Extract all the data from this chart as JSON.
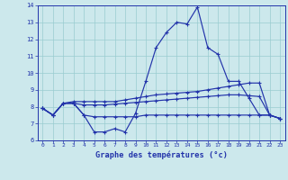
{
  "title": "Graphe des températures (°c)",
  "bg_color": "#cce8ec",
  "line_color": "#2233aa",
  "grid_color": "#99ccd0",
  "xlim_min": -0.5,
  "xlim_max": 23.5,
  "ylim_min": 6,
  "ylim_max": 14,
  "yticks": [
    6,
    7,
    8,
    9,
    10,
    11,
    12,
    13,
    14
  ],
  "xticks": [
    0,
    1,
    2,
    3,
    4,
    5,
    6,
    7,
    8,
    9,
    10,
    11,
    12,
    13,
    14,
    15,
    16,
    17,
    18,
    19,
    20,
    21,
    22,
    23
  ],
  "hours": [
    0,
    1,
    2,
    3,
    4,
    5,
    6,
    7,
    8,
    9,
    10,
    11,
    12,
    13,
    14,
    15,
    16,
    17,
    18,
    19,
    20,
    21,
    22,
    23
  ],
  "line_main": [
    7.9,
    7.5,
    8.2,
    8.2,
    7.5,
    6.5,
    6.5,
    6.7,
    6.5,
    7.6,
    9.5,
    11.5,
    12.4,
    13.0,
    12.9,
    13.9,
    11.5,
    11.1,
    9.5,
    9.5,
    8.5,
    7.5,
    7.5,
    7.3
  ],
  "line_upper": [
    7.9,
    7.5,
    8.2,
    8.3,
    8.3,
    8.3,
    8.3,
    8.3,
    8.4,
    8.5,
    8.6,
    8.7,
    8.75,
    8.8,
    8.85,
    8.9,
    9.0,
    9.1,
    9.2,
    9.3,
    9.4,
    9.4,
    7.5,
    7.3
  ],
  "line_mid": [
    7.9,
    7.5,
    8.2,
    8.2,
    8.1,
    8.1,
    8.1,
    8.15,
    8.2,
    8.25,
    8.3,
    8.35,
    8.4,
    8.45,
    8.5,
    8.55,
    8.6,
    8.65,
    8.7,
    8.7,
    8.65,
    8.6,
    7.5,
    7.3
  ],
  "line_lower": [
    7.9,
    7.5,
    8.2,
    8.2,
    7.5,
    7.4,
    7.4,
    7.4,
    7.4,
    7.4,
    7.5,
    7.5,
    7.5,
    7.5,
    7.5,
    7.5,
    7.5,
    7.5,
    7.5,
    7.5,
    7.5,
    7.5,
    7.5,
    7.3
  ]
}
